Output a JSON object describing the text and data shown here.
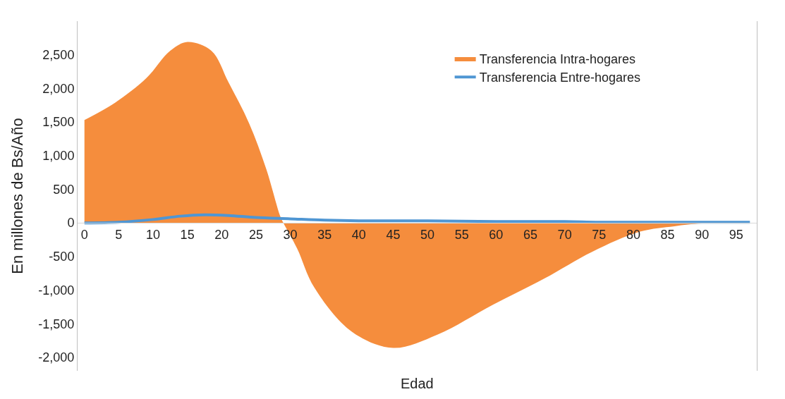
{
  "chart_data": {
    "type": "area",
    "xlabel": "Edad",
    "ylabel": "En millones de Bs/Año",
    "xlim": [
      -1,
      98
    ],
    "xticks": [
      0,
      5,
      10,
      15,
      20,
      25,
      30,
      35,
      40,
      45,
      50,
      55,
      60,
      65,
      70,
      75,
      80,
      85,
      90,
      95
    ],
    "ylim": [
      -2200,
      3000
    ],
    "yticks": [
      {
        "value": -2000,
        "label": "-2,000"
      },
      {
        "value": -1500,
        "label": "-1,500"
      },
      {
        "value": -1000,
        "label": "-1,000"
      },
      -500,
      0,
      500,
      {
        "value": 1000,
        "label": "1,000"
      },
      {
        "value": 1500,
        "label": "1,500"
      },
      {
        "value": 2000,
        "label": "2,000"
      },
      {
        "value": 2500,
        "label": "2,500"
      }
    ],
    "legend": "top right",
    "series": [
      {
        "name": "Transferencia Intra-hogares",
        "color": "#f58d3d",
        "x": [
          0,
          4.5,
          9,
          12.5,
          15,
          18.5,
          21,
          24,
          26.5,
          28.5,
          29,
          31,
          33.5,
          39,
          45,
          51.5,
          59.5,
          67,
          74,
          81,
          86,
          90,
          97
        ],
        "values": [
          1530,
          1790,
          2150,
          2560,
          2690,
          2560,
          2090,
          1480,
          800,
          110,
          0,
          -380,
          -960,
          -1620,
          -1860,
          -1660,
          -1220,
          -830,
          -430,
          -130,
          -50,
          -10,
          0
        ]
      },
      {
        "name": "Transferencia Entre-hogares",
        "type": "line",
        "color": "#4f96d3",
        "x": [
          0,
          5,
          10,
          14,
          17.5,
          21,
          25,
          30,
          35,
          40,
          50,
          60,
          70,
          75,
          85,
          90,
          97
        ],
        "values": [
          0,
          10,
          50,
          100,
          120,
          110,
          80,
          60,
          40,
          30,
          30,
          20,
          20,
          10,
          10,
          10,
          10
        ]
      }
    ]
  }
}
